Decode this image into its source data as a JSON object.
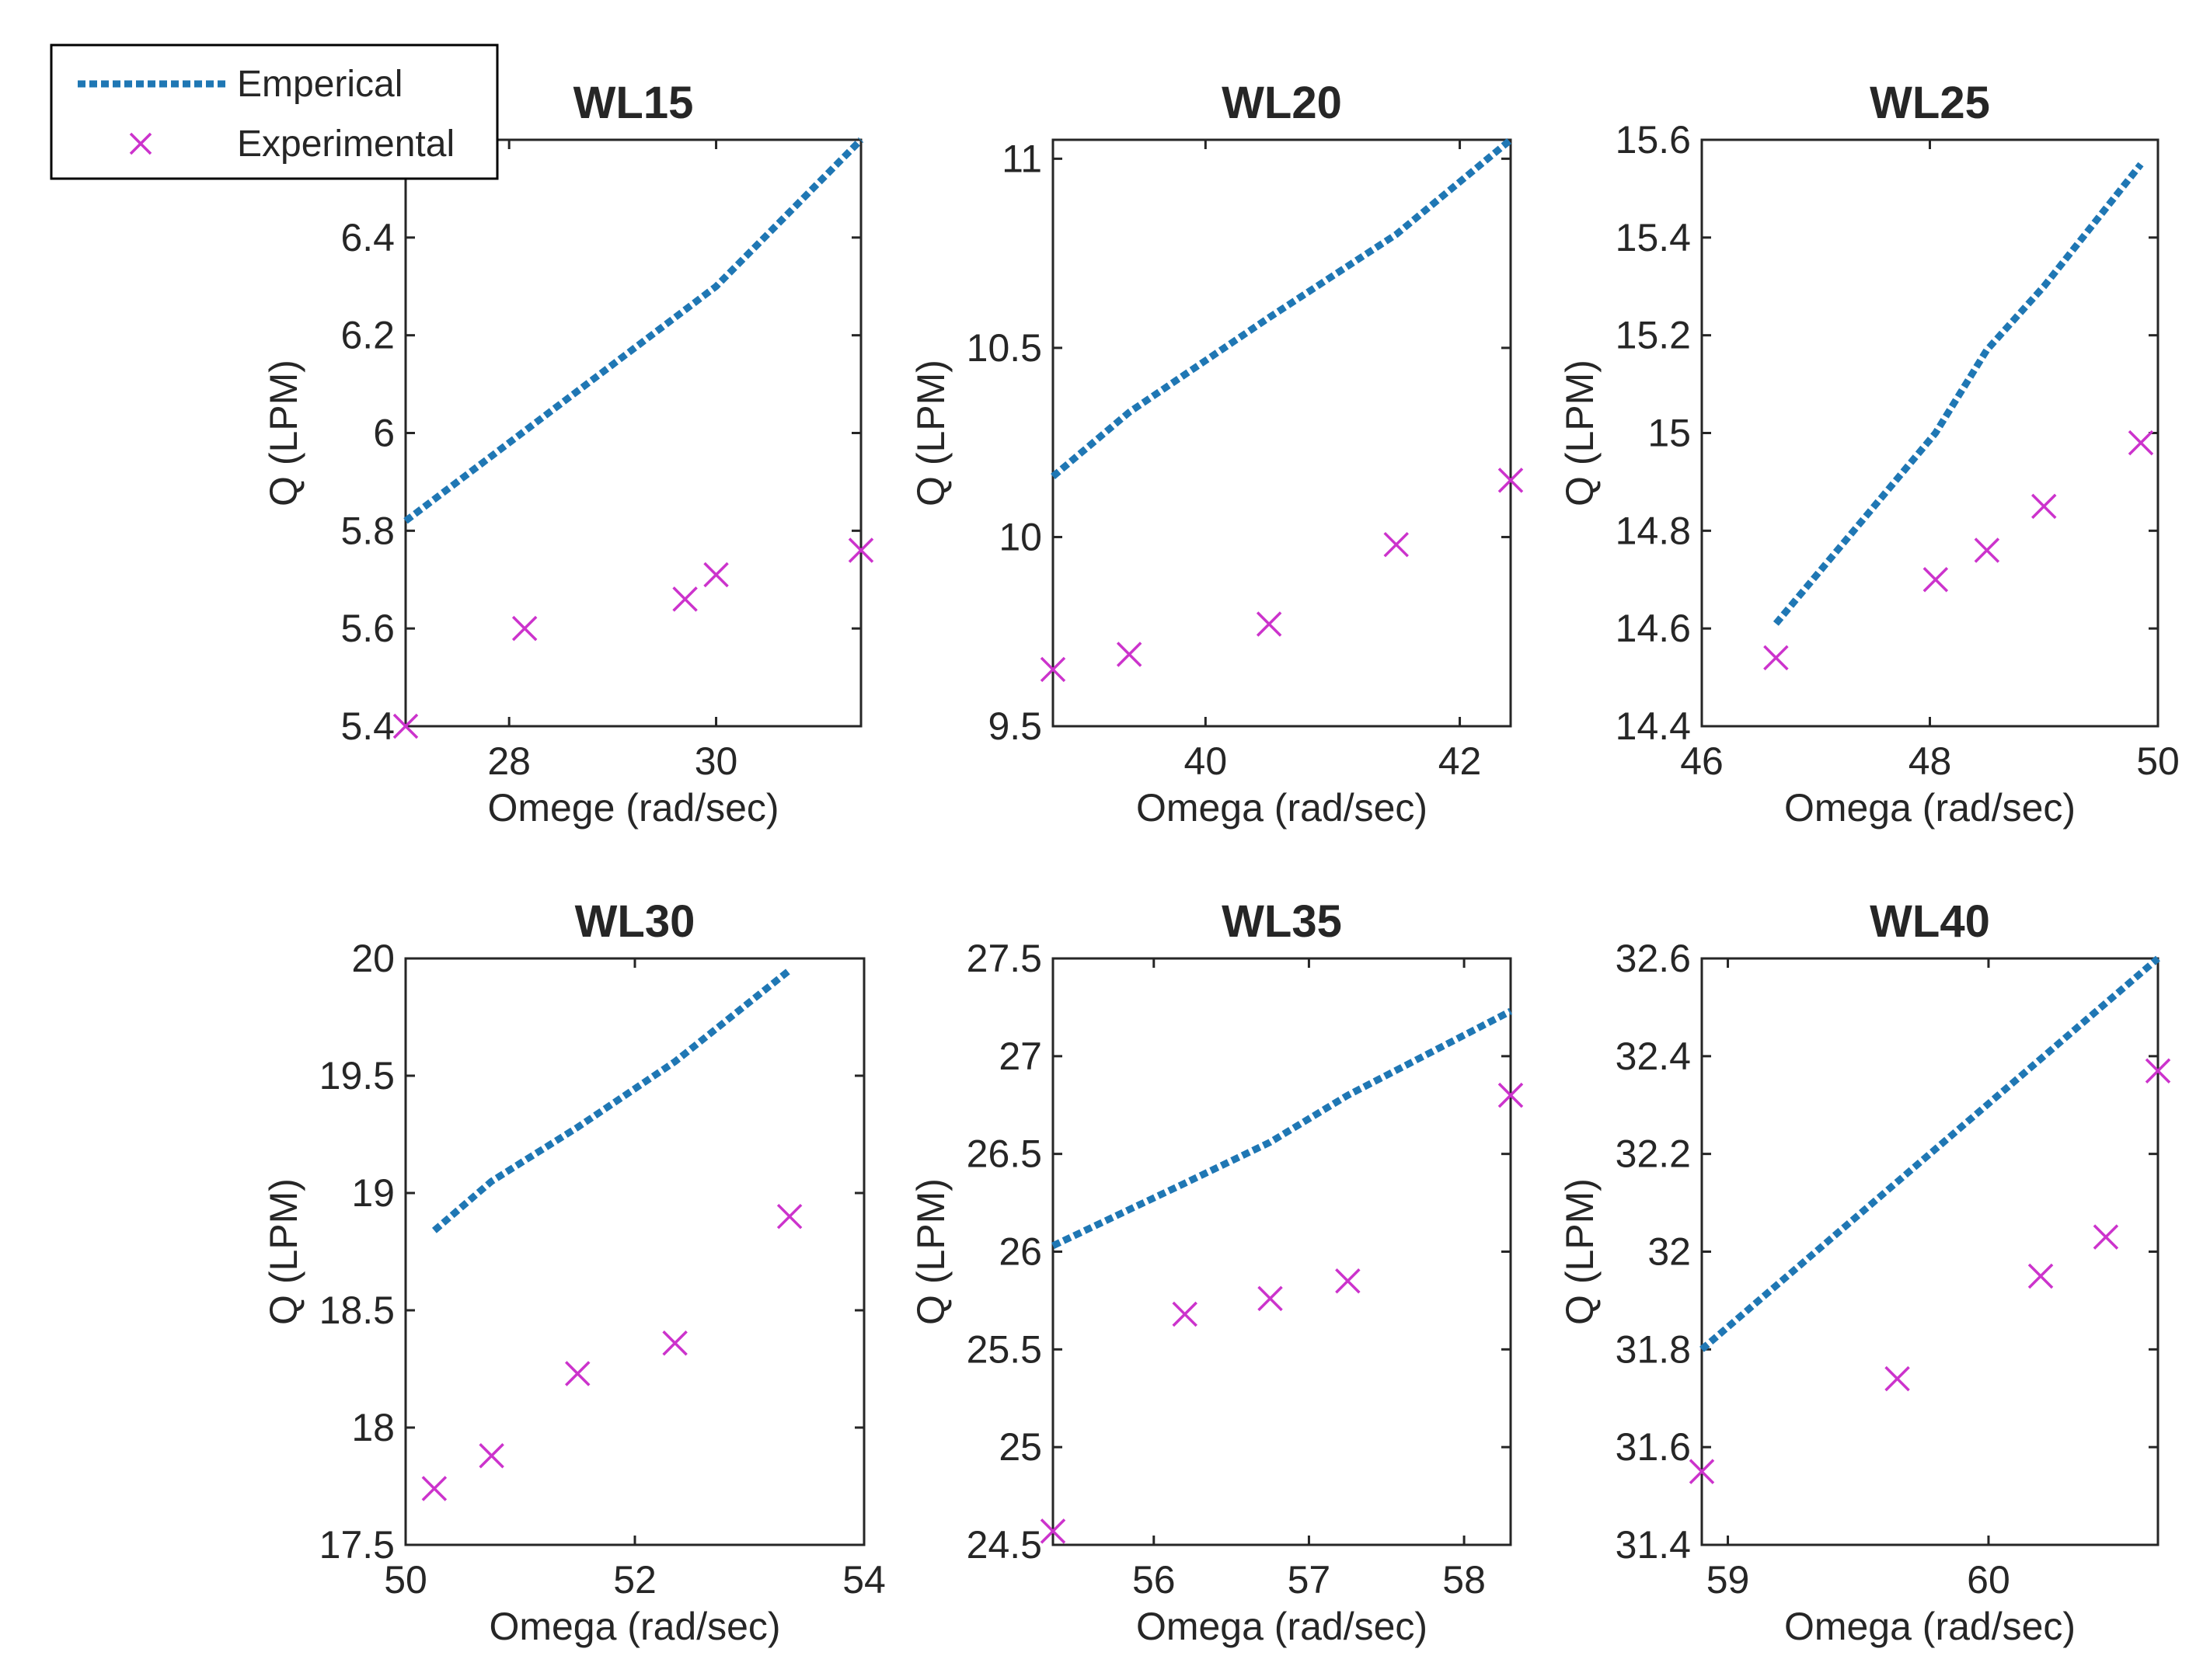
{
  "legend": {
    "emperical_label": "Emperical",
    "experimental_label": "Experimental"
  },
  "colors": {
    "emperical": "#1f77b4",
    "experimental": "#cc33cc",
    "axes": "#262626"
  },
  "chart_data": [
    {
      "type": "line+scatter",
      "title": "WL15",
      "xlabel": "Omege (rad/sec)",
      "ylabel": "Q (LPM)",
      "xlim": [
        27.0,
        31.4
      ],
      "ylim": [
        5.4,
        6.6
      ],
      "xticks": [
        28,
        30
      ],
      "yticks": [
        5.4,
        5.6,
        5.8,
        6,
        6.2,
        6.4
      ],
      "series": [
        {
          "name": "Emperical",
          "kind": "line",
          "x": [
            27.0,
            30.0,
            31.4
          ],
          "y": [
            5.82,
            6.3,
            6.6
          ]
        },
        {
          "name": "Experimental",
          "kind": "scatter",
          "x": [
            27.0,
            28.15,
            29.7,
            30.0,
            31.4
          ],
          "y": [
            5.4,
            5.6,
            5.66,
            5.71,
            5.76
          ]
        }
      ]
    },
    {
      "type": "line+scatter",
      "title": "WL20",
      "xlabel": "Omega (rad/sec)",
      "ylabel": "Q (LPM)",
      "xlim": [
        38.8,
        42.4
      ],
      "ylim": [
        9.5,
        11.05
      ],
      "xticks": [
        40,
        42
      ],
      "yticks": [
        9.5,
        10,
        10.5,
        11
      ],
      "series": [
        {
          "name": "Emperical",
          "kind": "line",
          "x": [
            38.8,
            39.4,
            40.5,
            41.5,
            42.4
          ],
          "y": [
            10.16,
            10.33,
            10.58,
            10.8,
            11.05
          ]
        },
        {
          "name": "Experimental",
          "kind": "scatter",
          "x": [
            38.8,
            39.4,
            40.5,
            41.5,
            42.4
          ],
          "y": [
            9.65,
            9.69,
            9.77,
            9.98,
            10.15
          ]
        }
      ]
    },
    {
      "type": "line+scatter",
      "title": "WL25",
      "xlabel": "Omega (rad/sec)",
      "ylabel": "Q (LPM)",
      "xlim": [
        46,
        50
      ],
      "ylim": [
        14.4,
        15.6
      ],
      "xticks": [
        46,
        48,
        50
      ],
      "yticks": [
        14.4,
        14.6,
        14.8,
        15,
        15.2,
        15.4,
        15.6
      ],
      "series": [
        {
          "name": "Emperical",
          "kind": "line",
          "x": [
            46.65,
            48.05,
            48.5,
            49.0,
            49.85
          ],
          "y": [
            14.61,
            15.0,
            15.17,
            15.3,
            15.55
          ]
        },
        {
          "name": "Experimental",
          "kind": "scatter",
          "x": [
            46.65,
            48.05,
            48.5,
            49.0,
            49.85
          ],
          "y": [
            14.54,
            14.7,
            14.76,
            14.85,
            14.98
          ]
        }
      ]
    },
    {
      "type": "line+scatter",
      "title": "WL30",
      "xlabel": "Omega (rad/sec)",
      "ylabel": "Q (LPM)",
      "xlim": [
        50,
        54
      ],
      "ylim": [
        17.5,
        20
      ],
      "xticks": [
        50,
        52,
        54
      ],
      "yticks": [
        17.5,
        18,
        18.5,
        19,
        19.5,
        20
      ],
      "series": [
        {
          "name": "Emperical",
          "kind": "line",
          "x": [
            50.25,
            50.75,
            51.5,
            52.35,
            53.35
          ],
          "y": [
            18.84,
            19.05,
            19.28,
            19.56,
            19.95
          ]
        },
        {
          "name": "Experimental",
          "kind": "scatter",
          "x": [
            50.25,
            50.75,
            51.5,
            52.35,
            53.35
          ],
          "y": [
            17.74,
            17.88,
            18.23,
            18.36,
            18.9
          ]
        }
      ]
    },
    {
      "type": "line+scatter",
      "title": "WL35",
      "xlabel": "Omega (rad/sec)",
      "ylabel": "Q (LPM)",
      "xlim": [
        55.35,
        58.3
      ],
      "ylim": [
        24.5,
        27.5
      ],
      "xticks": [
        56,
        57,
        58
      ],
      "yticks": [
        24.5,
        25,
        25.5,
        26,
        26.5,
        27,
        27.5
      ],
      "series": [
        {
          "name": "Emperical",
          "kind": "line",
          "x": [
            55.35,
            56.2,
            56.75,
            57.25,
            58.3
          ],
          "y": [
            26.03,
            26.35,
            26.56,
            26.8,
            27.23
          ]
        },
        {
          "name": "Experimental",
          "kind": "scatter",
          "x": [
            55.35,
            56.2,
            56.75,
            57.25,
            58.3
          ],
          "y": [
            24.57,
            25.68,
            25.76,
            25.85,
            26.8
          ]
        }
      ]
    },
    {
      "type": "line+scatter",
      "title": "WL40",
      "xlabel": "Omega (rad/sec)",
      "ylabel": "Q (LPM)",
      "xlim": [
        58.9,
        60.65
      ],
      "ylim": [
        31.4,
        32.6
      ],
      "xticks": [
        59,
        60
      ],
      "yticks": [
        31.4,
        31.6,
        31.8,
        32,
        32.2,
        32.4,
        32.6
      ],
      "series": [
        {
          "name": "Emperical",
          "kind": "line",
          "x": [
            58.9,
            60.65
          ],
          "y": [
            31.8,
            32.6
          ]
        },
        {
          "name": "Experimental",
          "kind": "scatter",
          "x": [
            58.9,
            59.65,
            60.2,
            60.45,
            60.65
          ],
          "y": [
            31.55,
            31.74,
            31.95,
            32.03,
            32.37
          ]
        }
      ]
    }
  ]
}
